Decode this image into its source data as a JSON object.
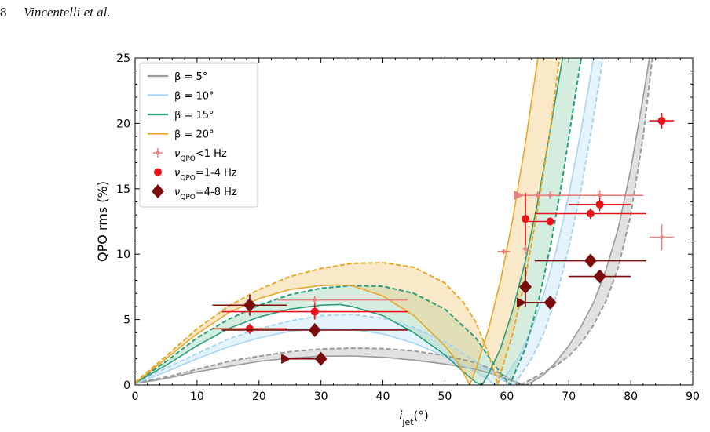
{
  "header": {
    "page_number": "8",
    "authors": "Vincentelli et al."
  },
  "chart_data": {
    "type": "line",
    "xlabel": "i_jet(°)",
    "ylabel": "QPO rms (%)",
    "xlim": [
      0,
      90
    ],
    "ylim": [
      0,
      25
    ],
    "xticks": [
      0,
      10,
      20,
      30,
      40,
      50,
      60,
      70,
      80,
      90
    ],
    "yticks": [
      0,
      5,
      10,
      15,
      20,
      25
    ],
    "grid": false,
    "legend_position": "top-left",
    "legend": [
      {
        "label": "β = 5°",
        "kind": "line",
        "color": "#9a9a9a"
      },
      {
        "label": "β = 10°",
        "kind": "line",
        "color": "#a8d4f2"
      },
      {
        "label": "β = 15°",
        "kind": "line",
        "color": "#2a9d7c"
      },
      {
        "label": "β = 20°",
        "kind": "line",
        "color": "#e6a82a"
      },
      {
        "label": "ν_QPO<1 Hz",
        "kind": "plus",
        "color": "#e98080"
      },
      {
        "label": "ν_QPO=1-4 Hz",
        "kind": "circle",
        "color": "#e8141a"
      },
      {
        "label": "ν_QPO=4-8 Hz",
        "kind": "diamond",
        "color": "#7a0c0c"
      }
    ],
    "model_curves": [
      {
        "name": "β = 5°",
        "color": "#9a9a9a",
        "fill": "#bdbdbd",
        "solid": [
          [
            0,
            0.1
          ],
          [
            5,
            0.5
          ],
          [
            10,
            1.0
          ],
          [
            15,
            1.4
          ],
          [
            20,
            1.8
          ],
          [
            25,
            2.05
          ],
          [
            30,
            2.2
          ],
          [
            35,
            2.22
          ],
          [
            40,
            2.12
          ],
          [
            45,
            1.9
          ],
          [
            50,
            1.6
          ],
          [
            55,
            1.2
          ],
          [
            58,
            0.8
          ],
          [
            60,
            0.45
          ],
          [
            62,
            0.15
          ],
          [
            63,
            0.0
          ],
          [
            64,
            0.2
          ],
          [
            66,
            0.8
          ],
          [
            68,
            1.8
          ],
          [
            70,
            3.0
          ],
          [
            72,
            4.5
          ],
          [
            74,
            6.3
          ],
          [
            76,
            8.8
          ],
          [
            78,
            12.0
          ],
          [
            80,
            16.5
          ],
          [
            82,
            22.0
          ],
          [
            83,
            25.0
          ]
        ],
        "dashed": [
          [
            0,
            0.15
          ],
          [
            5,
            0.6
          ],
          [
            10,
            1.2
          ],
          [
            15,
            1.8
          ],
          [
            20,
            2.2
          ],
          [
            25,
            2.55
          ],
          [
            30,
            2.75
          ],
          [
            35,
            2.82
          ],
          [
            40,
            2.78
          ],
          [
            45,
            2.6
          ],
          [
            50,
            2.25
          ],
          [
            55,
            1.7
          ],
          [
            58,
            1.1
          ],
          [
            60,
            0.6
          ],
          [
            61,
            0.2
          ],
          [
            62,
            0.0
          ],
          [
            63,
            0.2
          ],
          [
            65,
            0.7
          ],
          [
            68,
            1.5
          ],
          [
            70,
            2.2
          ],
          [
            72,
            3.2
          ],
          [
            74,
            4.6
          ],
          [
            76,
            6.4
          ],
          [
            78,
            9.0
          ],
          [
            80,
            13.0
          ],
          [
            82,
            19.0
          ],
          [
            83.5,
            25.0
          ]
        ]
      },
      {
        "name": "β = 10°",
        "color": "#a8d4f2",
        "fill": "#c6e4f8",
        "solid": [
          [
            0,
            0.1
          ],
          [
            5,
            1.0
          ],
          [
            10,
            2.0
          ],
          [
            15,
            2.9
          ],
          [
            20,
            3.6
          ],
          [
            25,
            4.1
          ],
          [
            30,
            4.3
          ],
          [
            35,
            4.25
          ],
          [
            40,
            3.9
          ],
          [
            45,
            3.2
          ],
          [
            50,
            2.2
          ],
          [
            55,
            1.0
          ],
          [
            57,
            0.4
          ],
          [
            58,
            0.0
          ],
          [
            60,
            0.8
          ],
          [
            62,
            2.2
          ],
          [
            64,
            4.3
          ],
          [
            66,
            7.0
          ],
          [
            68,
            10.3
          ],
          [
            70,
            14.5
          ],
          [
            72,
            19.5
          ],
          [
            74,
            25.0
          ]
        ],
        "dashed": [
          [
            0,
            0.15
          ],
          [
            5,
            1.3
          ],
          [
            10,
            2.4
          ],
          [
            15,
            3.5
          ],
          [
            20,
            4.3
          ],
          [
            25,
            4.9
          ],
          [
            30,
            5.3
          ],
          [
            35,
            5.4
          ],
          [
            40,
            5.1
          ],
          [
            45,
            4.4
          ],
          [
            50,
            3.3
          ],
          [
            55,
            1.8
          ],
          [
            58,
            0.8
          ],
          [
            60,
            0.2
          ],
          [
            61,
            0.0
          ],
          [
            62,
            0.6
          ],
          [
            64,
            2.0
          ],
          [
            66,
            4.0
          ],
          [
            68,
            6.8
          ],
          [
            70,
            10.5
          ],
          [
            72,
            15.0
          ],
          [
            74,
            20.5
          ],
          [
            75.5,
            25.0
          ]
        ]
      },
      {
        "name": "β = 15°",
        "color": "#2a9d7c",
        "fill": "#9fd6b6",
        "solid": [
          [
            0,
            0.15
          ],
          [
            5,
            1.5
          ],
          [
            10,
            3.0
          ],
          [
            15,
            4.3
          ],
          [
            20,
            5.2
          ],
          [
            25,
            5.8
          ],
          [
            30,
            6.1
          ],
          [
            33,
            6.15
          ],
          [
            35,
            6.0
          ],
          [
            40,
            5.3
          ],
          [
            45,
            4.0
          ],
          [
            50,
            2.3
          ],
          [
            53,
            1.0
          ],
          [
            55,
            0.2
          ],
          [
            56,
            0.0
          ],
          [
            57,
            0.8
          ],
          [
            59,
            2.8
          ],
          [
            61,
            5.8
          ],
          [
            63,
            9.5
          ],
          [
            65,
            14.0
          ],
          [
            67,
            19.5
          ],
          [
            69,
            25.0
          ]
        ],
        "dashed": [
          [
            0,
            0.15
          ],
          [
            5,
            1.8
          ],
          [
            10,
            3.6
          ],
          [
            15,
            5.0
          ],
          [
            20,
            6.1
          ],
          [
            25,
            6.9
          ],
          [
            30,
            7.4
          ],
          [
            35,
            7.6
          ],
          [
            40,
            7.55
          ],
          [
            45,
            7.0
          ],
          [
            50,
            5.8
          ],
          [
            55,
            3.6
          ],
          [
            57,
            2.2
          ],
          [
            59,
            0.9
          ],
          [
            60,
            0.3
          ],
          [
            60.5,
            0.0
          ],
          [
            61,
            0.6
          ],
          [
            63,
            2.8
          ],
          [
            65,
            6.2
          ],
          [
            67,
            10.5
          ],
          [
            69,
            15.8
          ],
          [
            71,
            22.0
          ],
          [
            72,
            25.0
          ]
        ]
      },
      {
        "name": "β = 20°",
        "color": "#e6a82a",
        "fill": "#f2cf86",
        "solid": [
          [
            0,
            0.15
          ],
          [
            5,
            2.0
          ],
          [
            10,
            3.9
          ],
          [
            15,
            5.5
          ],
          [
            20,
            6.6
          ],
          [
            25,
            7.3
          ],
          [
            30,
            7.6
          ],
          [
            33,
            7.65
          ],
          [
            35,
            7.6
          ],
          [
            40,
            6.8
          ],
          [
            45,
            5.3
          ],
          [
            50,
            3.0
          ],
          [
            52,
            1.8
          ],
          [
            53,
            0.9
          ],
          [
            54,
            0.0
          ],
          [
            55,
            1.2
          ],
          [
            57,
            4.2
          ],
          [
            59,
            8.0
          ],
          [
            61,
            12.8
          ],
          [
            63,
            18.5
          ],
          [
            65,
            25.0
          ]
        ],
        "dashed": [
          [
            0,
            0.2
          ],
          [
            5,
            2.2
          ],
          [
            10,
            4.3
          ],
          [
            15,
            6.0
          ],
          [
            20,
            7.3
          ],
          [
            25,
            8.3
          ],
          [
            30,
            8.9
          ],
          [
            35,
            9.3
          ],
          [
            40,
            9.35
          ],
          [
            45,
            9.0
          ],
          [
            50,
            7.8
          ],
          [
            53,
            6.3
          ],
          [
            55,
            4.8
          ],
          [
            57,
            2.4
          ],
          [
            58,
            0.9
          ],
          [
            58.5,
            0.0
          ],
          [
            59,
            0.9
          ],
          [
            61,
            4.0
          ],
          [
            63,
            8.2
          ],
          [
            65,
            13.5
          ],
          [
            67,
            19.5
          ],
          [
            68.5,
            25.0
          ]
        ]
      }
    ],
    "data_series": [
      {
        "name": "ν_QPO<1 Hz",
        "marker": "plus",
        "color": "#e98080",
        "points": [
          {
            "x": 85,
            "y": 11.3,
            "xerr": [
              2,
              2
            ],
            "yerr": [
              1.0,
              1.0
            ]
          },
          {
            "x": 75,
            "y": 14.5,
            "xerr": [
              0.5,
              0.5
            ],
            "yerr": [
              0.4,
              0.4
            ]
          },
          {
            "x": 67,
            "y": 14.5,
            "xerr": [
              0.5,
              0.5
            ],
            "yerr": [
              0.3,
              0.3
            ]
          },
          {
            "x": 65,
            "y": 14.5,
            "xerr": [
              0.5,
              0.5
            ],
            "yerr": [
              0.3,
              0.3
            ]
          },
          {
            "x": 59.5,
            "y": 10.2,
            "xerr": [
              1,
              1
            ],
            "yerr": [
              0.2,
              0.2
            ]
          },
          {
            "x": 63,
            "y": 10.4,
            "xerr": [
              0.5,
              0.5
            ],
            "yerr": [
              0.4,
              0.4
            ]
          },
          {
            "x": 29,
            "y": 6.5,
            "xerr": [
              0,
              0
            ],
            "yerr": [
              0.3,
              0.3
            ]
          }
        ],
        "lines": [
          {
            "x1": 62.5,
            "x2": 82,
            "y": 14.5,
            "arrow_left": true
          },
          {
            "x1": 23,
            "x2": 44,
            "y": 6.5
          }
        ]
      },
      {
        "name": "ν_QPO=1-4 Hz",
        "marker": "circle",
        "color": "#e8141a",
        "points": [
          {
            "x": 85,
            "y": 20.2,
            "xerr": [
              2,
              2
            ],
            "yerr": [
              0.6,
              0.6
            ]
          },
          {
            "x": 75,
            "y": 13.8,
            "xerr": [
              5,
              5
            ],
            "yerr": [
              0.5,
              0.5
            ]
          },
          {
            "x": 73.5,
            "y": 13.1,
            "xerr": [
              9,
              9
            ],
            "yerr": [
              0.4,
              0.4
            ]
          },
          {
            "x": 63,
            "y": 12.7,
            "xerr": [
              0,
              0
            ],
            "yerr": [
              2.0,
              2.0
            ]
          },
          {
            "x": 67,
            "y": 12.5,
            "xerr": [
              3.5,
              0
            ],
            "yerr": [
              0.3,
              0.3
            ]
          },
          {
            "x": 29,
            "y": 5.6,
            "xerr": [
              15,
              15
            ],
            "yerr": [
              0.6,
              0.6
            ]
          },
          {
            "x": 18.5,
            "y": 4.3,
            "xerr": [
              6,
              6
            ],
            "yerr": [
              0.4,
              0.4
            ]
          }
        ]
      },
      {
        "name": "ν_QPO=4-8 Hz",
        "marker": "diamond",
        "color": "#7a0c0c",
        "points": [
          {
            "x": 73.5,
            "y": 9.5,
            "xerr": [
              9,
              9
            ],
            "yerr": [
              0.5,
              0.5
            ]
          },
          {
            "x": 75,
            "y": 8.3,
            "xerr": [
              5,
              5
            ],
            "yerr": [
              0.4,
              0.4
            ]
          },
          {
            "x": 63,
            "y": 7.5,
            "xerr": [
              0,
              0
            ],
            "yerr": [
              1.5,
              1.5
            ]
          },
          {
            "x": 67,
            "y": 6.3,
            "xerr": [
              4,
              0
            ],
            "yerr": [
              0.3,
              0.3
            ],
            "arrow_left": true
          },
          {
            "x": 18.5,
            "y": 6.1,
            "xerr": [
              6,
              6
            ],
            "yerr": [
              0.8,
              0.8
            ]
          },
          {
            "x": 29,
            "y": 4.2,
            "xerr": [
              15,
              15
            ],
            "yerr": [
              0.5,
              0.5
            ]
          },
          {
            "x": 30,
            "y": 2.0,
            "xerr": [
              5,
              0
            ],
            "yerr": [
              0.2,
              0.2
            ],
            "arrow_left": true
          }
        ]
      }
    ]
  }
}
